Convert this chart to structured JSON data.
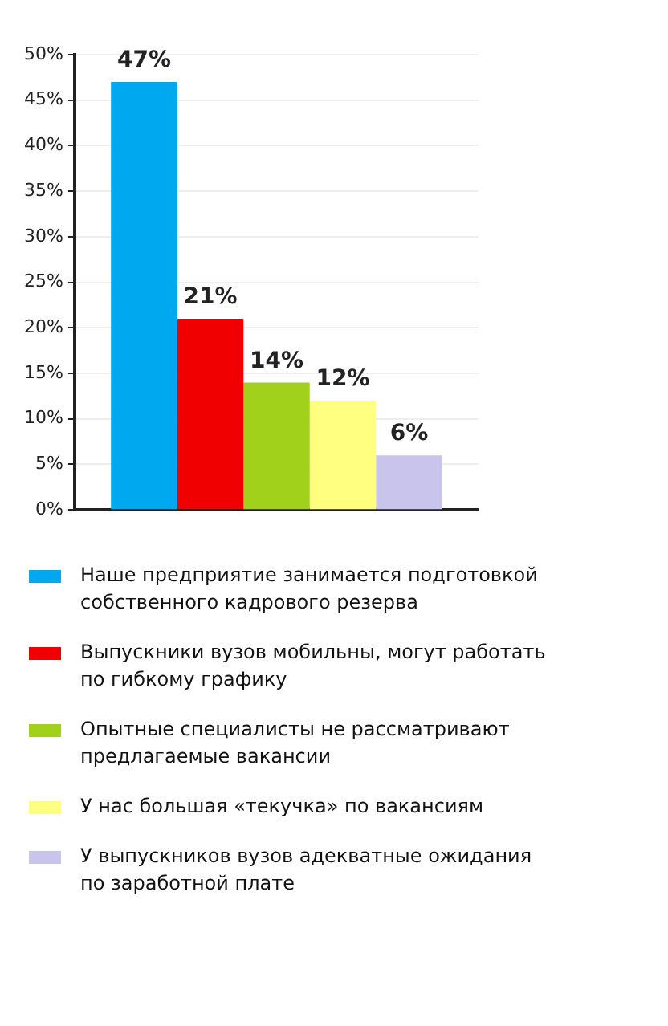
{
  "chart_data": {
    "type": "bar",
    "categories": [
      null
    ],
    "series": [
      {
        "name": "Наше предприятие занимается подготовкой собственного кадрового резерва",
        "color": "#00a8f0",
        "values": [
          47
        ],
        "value_labels": [
          "47%"
        ]
      },
      {
        "name": "Выпускники вузов мобильны, могут работать по гибкому графику",
        "color": "#f00000",
        "values": [
          21
        ],
        "value_labels": [
          "21%"
        ]
      },
      {
        "name": "Опытные специалисты не рассматривают предлагаемые вакансии",
        "color": "#a2d11c",
        "values": [
          14
        ],
        "value_labels": [
          "14%"
        ]
      },
      {
        "name": "У нас большая «текучка» по вакансиям",
        "color": "#ffff80",
        "values": [
          12
        ],
        "value_labels": [
          "12%"
        ]
      },
      {
        "name": "У выпускников вузов адекватные ожидания по заработной плате",
        "color": "#c8c4ec",
        "values": [
          6
        ],
        "value_labels": [
          "6%"
        ]
      }
    ],
    "ylim": [
      0,
      50
    ],
    "yticks": [
      {
        "value": 0,
        "label": "0%"
      },
      {
        "value": 5,
        "label": "5%"
      },
      {
        "value": 10,
        "label": "10%"
      },
      {
        "value": 15,
        "label": "15%"
      },
      {
        "value": 20,
        "label": "20%"
      },
      {
        "value": 25,
        "label": "25%"
      },
      {
        "value": 30,
        "label": "30%"
      },
      {
        "value": 35,
        "label": "35%"
      },
      {
        "value": 40,
        "label": "40%"
      },
      {
        "value": 45,
        "label": "45%"
      },
      {
        "value": 50,
        "label": "50%"
      }
    ],
    "grid": "y",
    "legend": "bottom"
  }
}
